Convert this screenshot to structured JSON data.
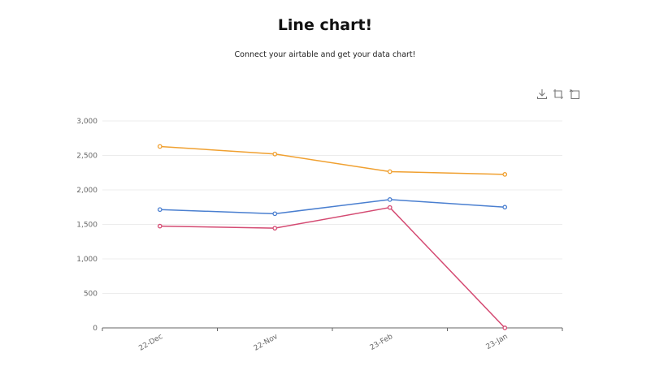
{
  "header": {
    "title": "Line chart!",
    "subtitle": "Connect your airtable and get your data chart!"
  },
  "toolbox": [
    {
      "name": "download-icon"
    },
    {
      "name": "crop-icon"
    },
    {
      "name": "restore-icon"
    }
  ],
  "chart_data": {
    "type": "line",
    "title": "Line chart!",
    "subtitle": "Connect your airtable and get your data chart!",
    "categories": [
      "22-Dec",
      "22-Nov",
      "23-Feb",
      "23-Jan"
    ],
    "ylim": [
      0,
      3000
    ],
    "yticks": [
      0,
      500,
      1000,
      1500,
      2000,
      2500,
      3000
    ],
    "ytick_labels": [
      "0",
      "500",
      "1,000",
      "1,500",
      "2,000",
      "2,500",
      "3,000"
    ],
    "xlabel": "",
    "ylabel": "",
    "grid": true,
    "series": [
      {
        "color": "#f0a030",
        "values": [
          2630,
          2520,
          2265,
          2225
        ]
      },
      {
        "color": "#4a7fd0",
        "values": [
          1715,
          1655,
          1860,
          1750
        ]
      },
      {
        "color": "#d44a72",
        "values": [
          1475,
          1445,
          1745,
          0
        ]
      }
    ]
  }
}
